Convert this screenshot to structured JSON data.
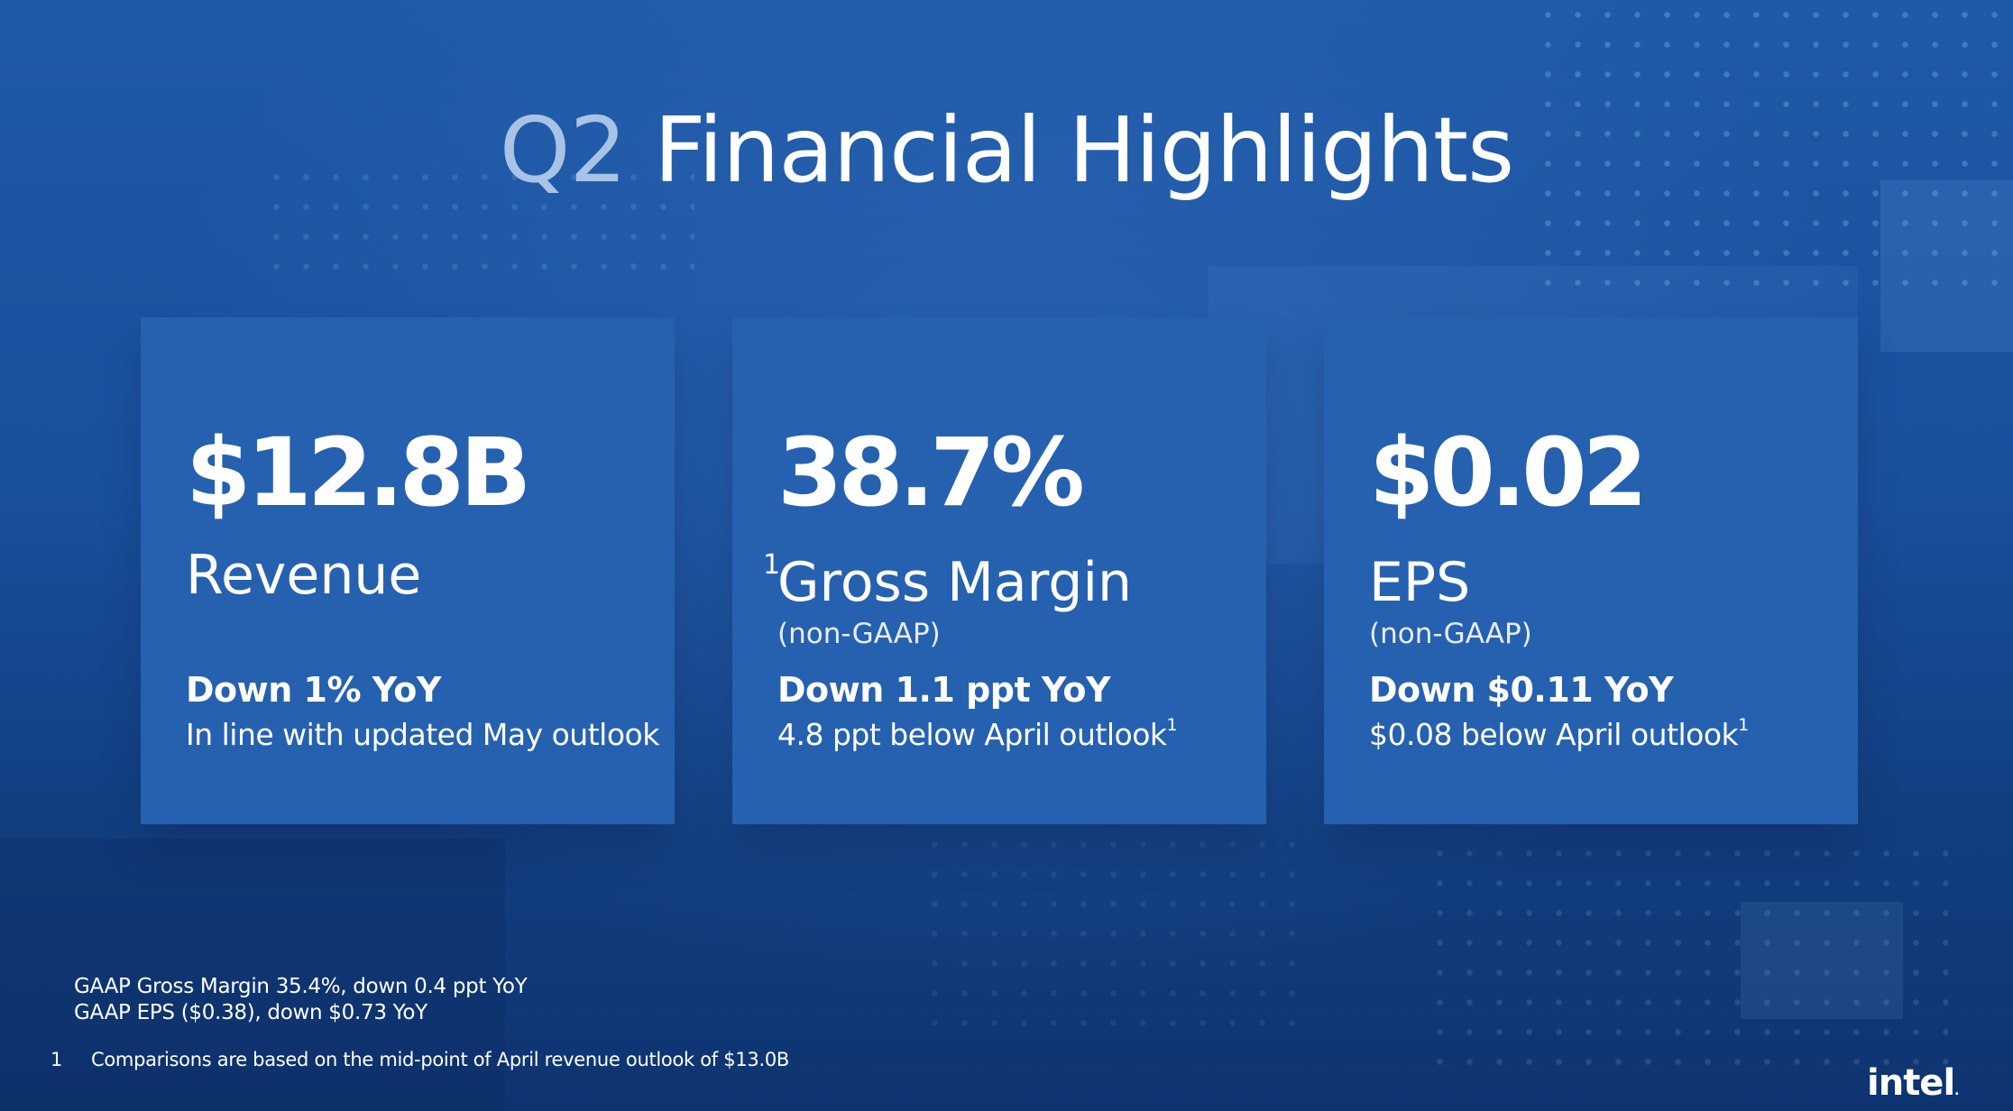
{
  "slide": {
    "title_prefix": "Q2",
    "title_rest": "Financial Highlights"
  },
  "cards": [
    {
      "metric": "$12.8B",
      "label": "Revenue",
      "change": "Down 1% YoY",
      "detail": "In line with updated May outlook"
    },
    {
      "footnote_ref": "1",
      "metric": "38.7%",
      "label": "Gross Margin",
      "sublabel": "(non-GAAP)",
      "change": "Down 1.1 ppt YoY",
      "detail": "4.8 ppt below April outlook",
      "detail_ref": "1"
    },
    {
      "metric": "$0.02",
      "label": "EPS",
      "sublabel": "(non-GAAP)",
      "change": "Down $0.11 YoY",
      "detail": "$0.08 below April outlook",
      "detail_ref": "1"
    }
  ],
  "notes": [
    "GAAP Gross Margin 35.4%, down 0.4 ppt YoY",
    "GAAP EPS ($0.38), down $0.73 YoY"
  ],
  "footnote": {
    "number": "1",
    "text": "Comparisons are based on the mid-point of April revenue outlook of $13.0B"
  },
  "logo": {
    "text": "intel",
    "mark": "."
  },
  "colors": {
    "background": "#1a4d98",
    "card": "#2661b0",
    "title_accent": "#a9c3e6"
  }
}
